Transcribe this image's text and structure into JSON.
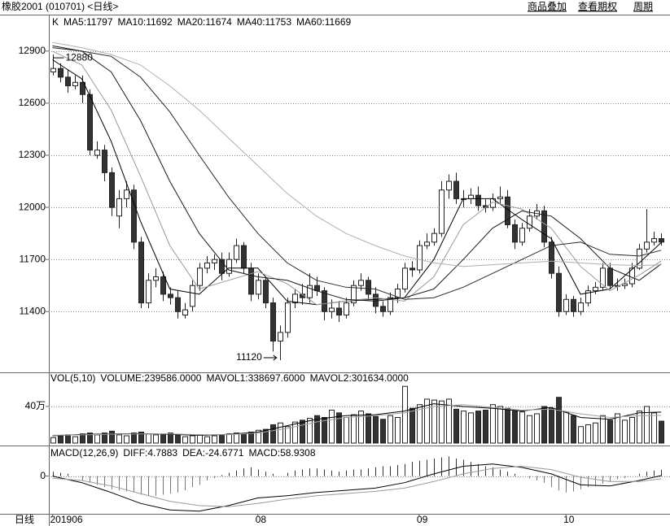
{
  "header": {
    "title": "橡胶2001 (010701) <日线>",
    "buttons": [
      "商品叠加",
      "查看期权",
      "周期"
    ]
  },
  "chart_data": [
    {
      "type": "candlestick",
      "label": "K",
      "x_label": "日线",
      "xlim": [
        -0.5,
        84.2
      ],
      "xticks": [
        {
          "value": 0,
          "label": "201906"
        },
        {
          "value": 28,
          "label": "08"
        },
        {
          "value": 50,
          "label": "09"
        },
        {
          "value": 70,
          "label": "10"
        }
      ],
      "ylim": [
        11050,
        13110
      ],
      "yticks": [
        11400,
        11700,
        12000,
        12300,
        12600,
        12900
      ],
      "grid": true,
      "open": [
        12780,
        12800,
        12750,
        12700,
        12720,
        12650,
        12300,
        12330,
        12200,
        11950,
        12050,
        12100,
        11800,
        11450,
        11580,
        11600,
        11500,
        11480,
        11380,
        11430,
        11550,
        11650,
        11680,
        11700,
        11620,
        11700,
        11780,
        11650,
        11500,
        11580,
        11450,
        11230,
        11280,
        11450,
        11500,
        11480,
        11550,
        11520,
        11400,
        11420,
        11380,
        11450,
        11550,
        11580,
        11500,
        11430,
        11400,
        11480,
        11530,
        11650,
        11640,
        11780,
        11800,
        11850,
        12100,
        12150,
        12050,
        12050,
        12070,
        12010,
        12000,
        12050,
        12060,
        11900,
        11800,
        11880,
        11950,
        11980,
        11800,
        11620,
        11400,
        11470,
        11400,
        11450,
        11520,
        11540,
        11650,
        11550,
        11550,
        11560,
        11650,
        11760,
        11800,
        11820
      ],
      "high": [
        12880,
        12830,
        12790,
        12760,
        12760,
        12680,
        12380,
        12360,
        12230,
        12100,
        12150,
        12130,
        11830,
        11620,
        11650,
        11630,
        11540,
        11520,
        11450,
        11580,
        11680,
        11720,
        11730,
        11740,
        11740,
        11820,
        11800,
        11680,
        11620,
        11600,
        11480,
        11320,
        11480,
        11530,
        11560,
        11620,
        11600,
        11540,
        11470,
        11460,
        11480,
        11580,
        11620,
        11600,
        11540,
        11460,
        11510,
        11560,
        11680,
        11690,
        11810,
        11850,
        11880,
        12150,
        12190,
        12200,
        12100,
        12110,
        12120,
        12050,
        12080,
        12120,
        12100,
        11930,
        11910,
        11990,
        12020,
        12010,
        11830,
        11660,
        11500,
        11490,
        11480,
        11550,
        11570,
        11680,
        11680,
        11590,
        11590,
        11680,
        11790,
        11990,
        11860,
        11850
      ],
      "low": [
        12760,
        12720,
        12660,
        12680,
        12600,
        12300,
        12280,
        12150,
        11950,
        11880,
        12000,
        11760,
        11420,
        11420,
        11540,
        11460,
        11440,
        11360,
        11360,
        11400,
        11520,
        11620,
        11640,
        11580,
        11600,
        11680,
        11620,
        11460,
        11470,
        11420,
        11170,
        11120,
        11250,
        11420,
        11440,
        11450,
        11490,
        11350,
        11360,
        11340,
        11360,
        11430,
        11520,
        11470,
        11390,
        11370,
        11380,
        11450,
        11510,
        11600,
        11620,
        11760,
        11780,
        11830,
        12050,
        12020,
        12000,
        12020,
        11980,
        11970,
        11980,
        12020,
        11880,
        11760,
        11780,
        11860,
        11930,
        11770,
        11590,
        11370,
        11380,
        11370,
        11380,
        11430,
        11500,
        11520,
        11530,
        11520,
        11530,
        11540,
        11640,
        11740,
        11780,
        11780
      ],
      "close": [
        12800,
        12750,
        12700,
        12720,
        12650,
        12330,
        12330,
        12200,
        12000,
        12050,
        12100,
        11800,
        11450,
        11580,
        11600,
        11500,
        11480,
        11400,
        11410,
        11550,
        11650,
        11680,
        11700,
        11620,
        11700,
        11780,
        11650,
        11500,
        11580,
        11450,
        11230,
        11280,
        11450,
        11500,
        11480,
        11550,
        11520,
        11400,
        11420,
        11380,
        11450,
        11550,
        11580,
        11500,
        11430,
        11400,
        11480,
        11530,
        11650,
        11640,
        11780,
        11800,
        11850,
        12100,
        12150,
        12050,
        12050,
        12070,
        12010,
        12000,
        12050,
        12060,
        11900,
        11800,
        11880,
        11950,
        11980,
        11800,
        11620,
        11400,
        11470,
        11400,
        11450,
        11520,
        11540,
        11650,
        11550,
        11550,
        11560,
        11650,
        11760,
        11800,
        11820,
        11800
      ],
      "ma_x": [
        0,
        4,
        8,
        12,
        16,
        20,
        24,
        28,
        32,
        36,
        40,
        44,
        48,
        52,
        56,
        60,
        64,
        68,
        72,
        76,
        80,
        83
      ],
      "series": [
        {
          "name": "MA5:11797",
          "color": "#000000",
          "values": [
            12850,
            12740,
            12380,
            11920,
            11530,
            11500,
            11650,
            11650,
            11460,
            11440,
            11460,
            11470,
            11480,
            11700,
            12050,
            12050,
            11930,
            11820,
            11500,
            11530,
            11680,
            11797
          ]
        },
        {
          "name": "MA10:11692",
          "color": "#9a9a9a",
          "values": [
            12900,
            12820,
            12560,
            12180,
            11780,
            11530,
            11580,
            11630,
            11560,
            11440,
            11460,
            11480,
            11460,
            11600,
            11900,
            12030,
            11990,
            11880,
            11660,
            11520,
            11610,
            11692
          ]
        },
        {
          "name": "MA20:11674",
          "color": "#1a1a1a",
          "values": [
            12930,
            12900,
            12780,
            12500,
            12150,
            11850,
            11640,
            11600,
            11580,
            11520,
            11470,
            11460,
            11480,
            11530,
            11700,
            11880,
            11980,
            11950,
            11820,
            11650,
            11580,
            11674
          ]
        },
        {
          "name": "MA40:11753",
          "color": "#2a2a2a",
          "values": [
            12920,
            12900,
            12870,
            12750,
            12550,
            12300,
            12060,
            11850,
            11680,
            11580,
            11540,
            11530,
            11470,
            11480,
            11540,
            11620,
            11700,
            11780,
            11800,
            11730,
            11720,
            11753
          ]
        },
        {
          "name": "MA60:11669",
          "color": "#b0b0b0",
          "values": [
            12950,
            12920,
            12880,
            12820,
            12700,
            12560,
            12400,
            12240,
            12080,
            11950,
            11850,
            11780,
            11720,
            11680,
            11660,
            11670,
            11680,
            11690,
            11680,
            11670,
            11665,
            11669
          ]
        }
      ]
    },
    {
      "type": "volume",
      "title": "VOL(5,10)",
      "volume_label": "VOLUME:239586.0000",
      "ylim": [
        0,
        755000
      ],
      "yticks": [
        {
          "value": 400000,
          "label": "40万"
        }
      ],
      "grid": true,
      "values": [
        60000,
        80000,
        90000,
        70000,
        100000,
        110000,
        90000,
        110000,
        130000,
        90000,
        80000,
        110000,
        120000,
        100000,
        90000,
        100000,
        110000,
        90000,
        70000,
        80000,
        90000,
        70000,
        80000,
        90000,
        100000,
        110000,
        100000,
        120000,
        140000,
        150000,
        200000,
        220000,
        180000,
        230000,
        250000,
        270000,
        300000,
        280000,
        360000,
        330000,
        280000,
        310000,
        350000,
        320000,
        290000,
        260000,
        300000,
        280000,
        620000,
        380000,
        420000,
        480000,
        470000,
        460000,
        480000,
        370000,
        350000,
        330000,
        350000,
        360000,
        420000,
        400000,
        380000,
        350000,
        340000,
        300000,
        320000,
        400000,
        380000,
        500000,
        340000,
        300000,
        180000,
        200000,
        220000,
        300000,
        250000,
        320000,
        250000,
        280000,
        350000,
        400000,
        330000,
        239586
      ],
      "series": [
        {
          "name": "MAVOL1:338697.6000",
          "color": "#000000",
          "values": [
            80000,
            95000,
            100000,
            105000,
            95000,
            85000,
            95000,
            120000,
            190000,
            260000,
            300000,
            310000,
            350000,
            430000,
            400000,
            380000,
            350000,
            390000,
            280000,
            260000,
            330000,
            338697.6
          ]
        },
        {
          "name": "MAVOL2:301634.0000",
          "color": "#a0a0a0",
          "values": [
            85000,
            90000,
            98000,
            100000,
            100000,
            92000,
            92000,
            110000,
            160000,
            230000,
            280000,
            300000,
            330000,
            400000,
            420000,
            390000,
            360000,
            370000,
            320000,
            280000,
            300000,
            301634
          ]
        }
      ]
    },
    {
      "type": "macd",
      "title": "MACD(12,26,9)",
      "bars_label": "MACD:58.9308",
      "ylim": [
        -330,
        250
      ],
      "yticks": [
        0
      ],
      "grid": true,
      "bars": [
        40,
        30,
        20,
        0,
        -40,
        -60,
        -80,
        -100,
        -120,
        -130,
        -140,
        -150,
        -170,
        -180,
        -180,
        -170,
        -160,
        -150,
        -130,
        -100,
        -80,
        -40,
        -20,
        10,
        30,
        50,
        70,
        80,
        60,
        40,
        20,
        0,
        30,
        50,
        60,
        70,
        70,
        60,
        50,
        40,
        50,
        60,
        60,
        70,
        80,
        90,
        90,
        100,
        110,
        130,
        140,
        150,
        160,
        170,
        180,
        160,
        150,
        130,
        110,
        90,
        80,
        60,
        40,
        20,
        0,
        -20,
        -40,
        -60,
        -100,
        -130,
        -150,
        -140,
        -120,
        -100,
        -90,
        -70,
        -50,
        -30,
        -20,
        0,
        20,
        40,
        50,
        58.9308
      ],
      "series": [
        {
          "name": "DIFF:4.7883",
          "color": "#000000",
          "values": [
            0,
            -60,
            -150,
            -250,
            -310,
            -320,
            -270,
            -200,
            -180,
            -150,
            -130,
            -110,
            -60,
            20,
            90,
            110,
            80,
            20,
            -80,
            -90,
            -40,
            4.7883
          ]
        },
        {
          "name": "DEA:-24.6771",
          "color": "#9a9a9a",
          "values": [
            -20,
            -40,
            -90,
            -160,
            -230,
            -270,
            -280,
            -250,
            -210,
            -180,
            -160,
            -140,
            -110,
            -50,
            20,
            70,
            90,
            60,
            -10,
            -50,
            -50,
            -24.6771
          ]
        }
      ]
    }
  ]
}
